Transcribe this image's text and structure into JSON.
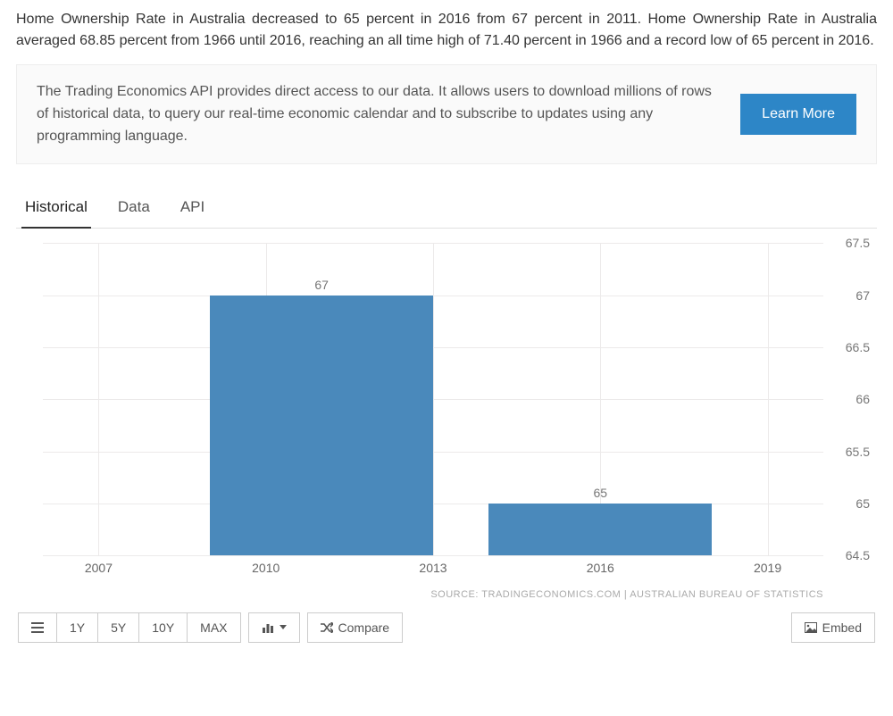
{
  "intro_text": "Home Ownership Rate in Australia decreased to 65 percent in 2016 from 67 percent in 2011. Home Ownership Rate in Australia averaged 68.85 percent from 1966 until 2016, reaching an all time high of 71.40 percent in 1966 and a record low of 65 percent in 2016.",
  "promo": {
    "text": "The Trading Economics API provides direct access to our data. It allows users to download millions of rows of historical data, to query our real-time economic calendar and to subscribe to updates using any programming language.",
    "button": "Learn More",
    "button_bg": "#2d86c7"
  },
  "tabs": {
    "items": [
      "Historical",
      "Data",
      "API"
    ],
    "active_index": 0
  },
  "chart": {
    "type": "bar",
    "y": {
      "min": 64.5,
      "max": 67.5,
      "ticks": [
        64.5,
        65,
        65.5,
        66,
        66.5,
        67,
        67.5
      ]
    },
    "x": {
      "min": 2006,
      "max": 2020,
      "ticks": [
        2007,
        2010,
        2013,
        2016,
        2019
      ]
    },
    "bars": [
      {
        "start": 2009,
        "end": 2013,
        "value": 67,
        "label": "67"
      },
      {
        "start": 2014,
        "end": 2018,
        "value": 65,
        "label": "65"
      }
    ],
    "bar_color": "#4a89bb",
    "grid_color": "#eceaea",
    "axis_text_color": "#777",
    "background_color": "#ffffff"
  },
  "source_text": "SOURCE: TRADINGECONOMICS.COM | AUSTRALIAN BUREAU OF STATISTICS",
  "toolbar": {
    "ranges": [
      "1Y",
      "5Y",
      "10Y",
      "MAX"
    ],
    "compare": "Compare",
    "embed": "Embed"
  }
}
